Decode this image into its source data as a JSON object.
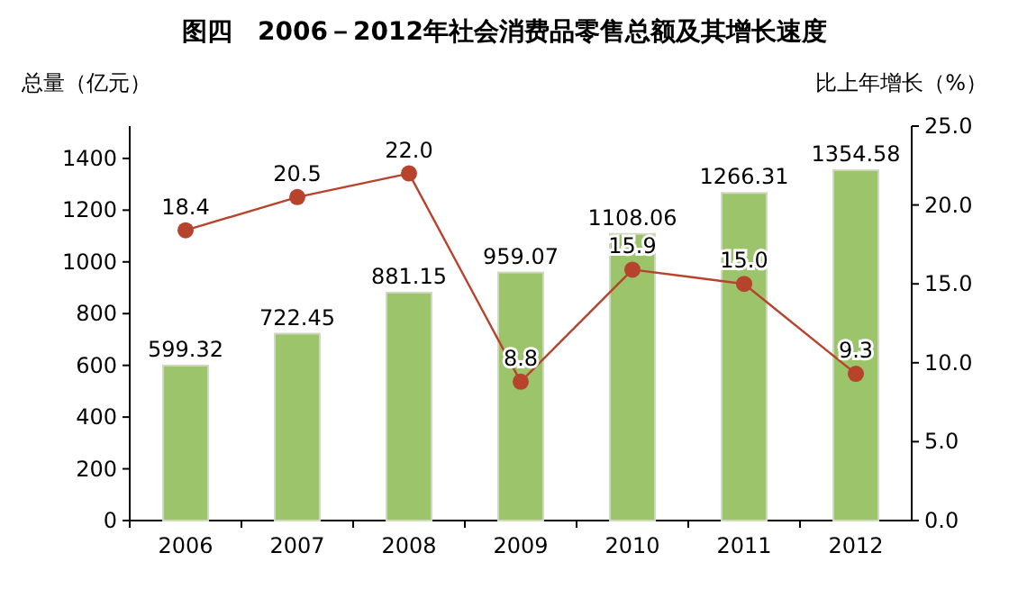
{
  "chart_data": {
    "type": "bar",
    "title": "图四　2006－2012年社会消费品零售总额及其增长速度",
    "ylabel": "总量（亿元）",
    "y2label": "比上年增长（%）",
    "categories": [
      "2006",
      "2007",
      "2008",
      "2009",
      "2010",
      "2011",
      "2012"
    ],
    "series": [
      {
        "color": "#9cc46a",
        "values": [
          599.32,
          722.45,
          881.15,
          959.07,
          1108.06,
          1266.31,
          1354.58
        ]
      },
      {
        "type": "line",
        "axis": "y2",
        "color": "#b8432c",
        "values": [
          18.4,
          20.5,
          22.0,
          8.8,
          15.9,
          15.0,
          9.3
        ],
        "value_labels": [
          "18.4",
          "20.5",
          "22.0",
          "8.8",
          "15.9",
          "15.0",
          "9.3"
        ]
      }
    ],
    "ylim": [
      0,
      1525
    ],
    "yticks": [
      0,
      200,
      400,
      600,
      800,
      1000,
      1200,
      1400
    ],
    "y2lim": [
      0,
      25
    ],
    "y2ticks": [
      {
        "value": 0,
        "label": "0.0"
      },
      {
        "value": 5,
        "label": "5.0"
      },
      {
        "value": 10,
        "label": "10.0"
      },
      {
        "value": 15,
        "label": "15.0"
      },
      {
        "value": 20,
        "label": "20.0"
      },
      {
        "value": 25,
        "label": "25.0"
      }
    ],
    "marker": "circle",
    "data_labels": true,
    "grid": false
  }
}
